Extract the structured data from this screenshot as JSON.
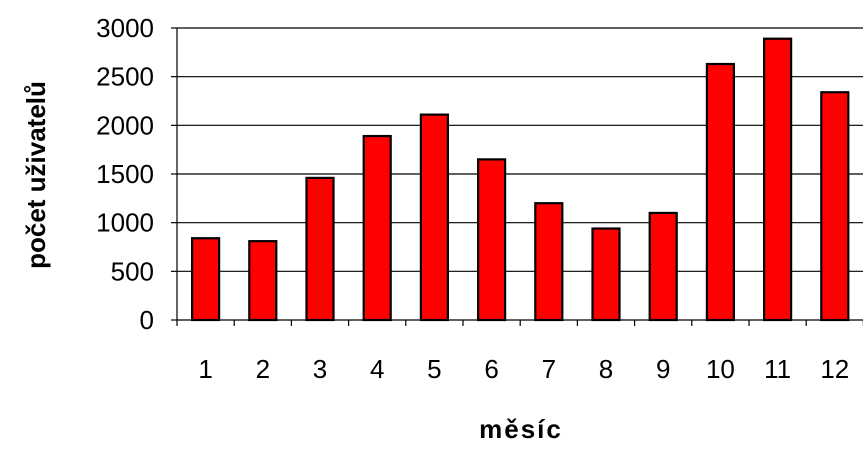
{
  "chart_data": {
    "type": "bar",
    "categories": [
      "1",
      "2",
      "3",
      "4",
      "5",
      "6",
      "7",
      "8",
      "9",
      "10",
      "11",
      "12"
    ],
    "values": [
      840,
      810,
      1460,
      1890,
      2110,
      1650,
      1200,
      940,
      1100,
      2630,
      2890,
      2340
    ],
    "title": "",
    "xlabel": "měsíc",
    "ylabel": "počet uživatelů",
    "ylim": [
      0,
      3000
    ],
    "yticks": [
      "0",
      "500",
      "1000",
      "1500",
      "2000",
      "2500",
      "3000"
    ],
    "grid": true,
    "bar_color": "#ff0000",
    "bar_edge_color": "#000000"
  }
}
